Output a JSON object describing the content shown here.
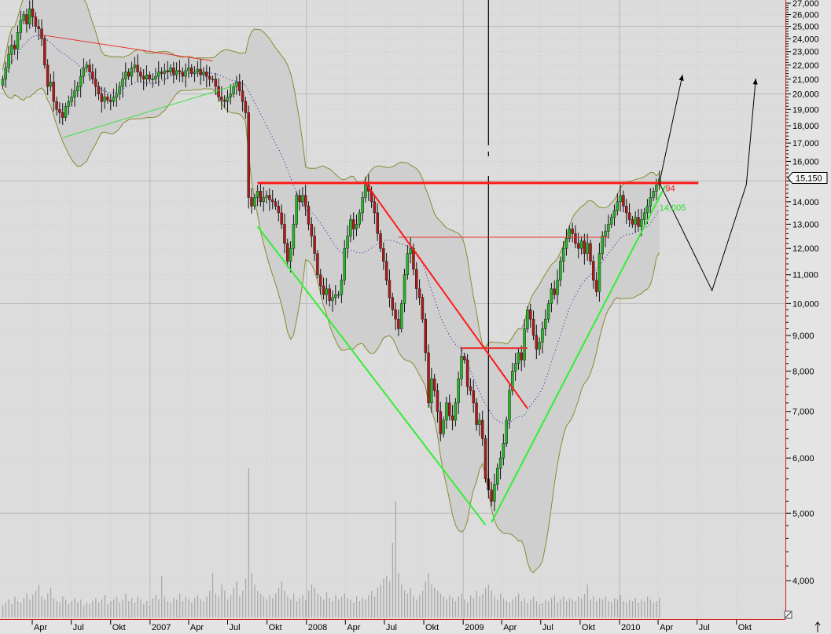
{
  "chart_data": {
    "type": "candlestick",
    "scale": "log",
    "ylim": [
      3700,
      27500
    ],
    "grid": true,
    "first_candle": "2006-01-22",
    "interval": "weekly",
    "close": [
      21000,
      21800,
      22800,
      23500,
      23200,
      24500,
      25500,
      26000,
      25200,
      26500,
      25800,
      25000,
      24800,
      24000,
      22000,
      20500,
      20800,
      19500,
      19000,
      18800,
      18500,
      19200,
      19500,
      19800,
      20200,
      20500,
      21200,
      21800,
      22000,
      21500,
      21000,
      20500,
      20000,
      19500,
      19800,
      19600,
      19500,
      19800,
      20000,
      20500,
      21000,
      21500,
      21200,
      21800,
      22000,
      21500,
      21200,
      21000,
      21300,
      21000,
      21000,
      21200,
      21500,
      21400,
      21600,
      21500,
      21800,
      21300,
      21600,
      21500,
      21200,
      21600,
      21800,
      21400,
      21500,
      21700,
      21300,
      21500,
      21200,
      21000,
      21000,
      20500,
      19800,
      19600,
      19500,
      19800,
      20000,
      20500,
      20800,
      20200,
      19500,
      18800,
      14200,
      13800,
      14200,
      14500,
      14000,
      14200,
      14300,
      14100,
      14000,
      13800,
      13500,
      13000,
      12200,
      11500,
      12000,
      13000,
      14300,
      14000,
      14300,
      13800,
      13000,
      12500,
      11800,
      11000,
      10600,
      10300,
      10500,
      10100,
      10200,
      10300,
      10300,
      10800,
      12000,
      12500,
      13200,
      12800,
      13000,
      13500,
      14200,
      14800,
      14500,
      14000,
      13500,
      12600,
      12000,
      11500,
      10800,
      10200,
      9800,
      9500,
      9200,
      10000,
      11000,
      11800,
      12000,
      11200,
      10500,
      10200,
      9500,
      8500,
      7200,
      7800,
      7500,
      7000,
      6500,
      6800,
      7200,
      6900,
      6800,
      7200,
      7800,
      8400,
      8300,
      7600,
      7500,
      7200,
      6700,
      6800,
      6400,
      5600,
      5400,
      5200,
      5500,
      5800,
      6000,
      6300,
      6800,
      7500,
      8000,
      8200,
      8500,
      8300,
      9200,
      9800,
      9500,
      9000,
      8600,
      8800,
      9200,
      9500,
      10000,
      10500,
      10300,
      10800,
      11500,
      12000,
      12400,
      12800,
      12600,
      12200,
      12000,
      12300,
      11800,
      12200,
      11500,
      10800,
      10400,
      11800,
      12500,
      12700,
      13000,
      13300,
      13600,
      14000,
      14300,
      13800,
      13500,
      13200,
      13000,
      13300,
      12900,
      13200,
      13500,
      13800,
      14200,
      14500,
      14800,
      15100
    ],
    "volume_relative": [
      8,
      10,
      12,
      9,
      14,
      11,
      10,
      13,
      16,
      12,
      15,
      18,
      22,
      14,
      12,
      16,
      20,
      13,
      11,
      10,
      14,
      12,
      9,
      11,
      13,
      10,
      12,
      8,
      10,
      9,
      11,
      13,
      10,
      12,
      15,
      9,
      11,
      12,
      14,
      10,
      12,
      16,
      11,
      13,
      10,
      14,
      12,
      9,
      11,
      8,
      13,
      15,
      12,
      28,
      14,
      11,
      10,
      13,
      12,
      16,
      11,
      14,
      12,
      10,
      13,
      15,
      12,
      11,
      14,
      18,
      30,
      16,
      14,
      22,
      18,
      12,
      15,
      20,
      24,
      14,
      18,
      26,
      100,
      30,
      22,
      18,
      16,
      14,
      12,
      15,
      13,
      16,
      20,
      24,
      18,
      14,
      12,
      16,
      11,
      13,
      15,
      12,
      18,
      22,
      20,
      16,
      14,
      12,
      17,
      13,
      11,
      15,
      12,
      14,
      16,
      13,
      12,
      10,
      14,
      11,
      13,
      12,
      15,
      18,
      14,
      20,
      22,
      26,
      28,
      24,
      50,
      78,
      30,
      22,
      18,
      16,
      20,
      14,
      12,
      15,
      18,
      24,
      30,
      22,
      20,
      18,
      16,
      14,
      12,
      15,
      13,
      11,
      14,
      16,
      12,
      10,
      15,
      13,
      18,
      14,
      16,
      20,
      22,
      18,
      14,
      12,
      16,
      13,
      11,
      10,
      12,
      14,
      16,
      11,
      13,
      10,
      12,
      14,
      11,
      9,
      10,
      12,
      11,
      13,
      15,
      10,
      12,
      14,
      11,
      13,
      12,
      11,
      14,
      13,
      16,
      22,
      12,
      14,
      11,
      13,
      12,
      14,
      11,
      10,
      13,
      12,
      15,
      11,
      10,
      12,
      11,
      13,
      10,
      12,
      11,
      14,
      12,
      10,
      11,
      13
    ],
    "indicators": [
      "Bollinger Bands",
      "moving average"
    ],
    "y_ticks": [
      27000,
      26000,
      25000,
      24000,
      23000,
      22000,
      21000,
      20000,
      19000,
      18000,
      17000,
      16000,
      14000,
      13000,
      12000,
      11000,
      10000,
      9000,
      8000,
      7000,
      6000,
      5000,
      4000
    ],
    "y_tick_labels": [
      "27,000",
      "26,000",
      "25,000",
      "24,000",
      "23,000",
      "22,000",
      "21,000",
      "20,000",
      "19,000",
      "18,000",
      "17,000",
      "16,000",
      "14,000",
      "13,000",
      "12,000",
      "11,000",
      "10,000",
      "9,000",
      "8,000",
      "7,000",
      "6,000",
      "5,000",
      "4,000"
    ],
    "x_ticks": [
      {
        "date": "2006-04-01",
        "label": "Apr"
      },
      {
        "date": "2006-07-01",
        "label": "Jul"
      },
      {
        "date": "2006-10-01",
        "label": "Okt"
      },
      {
        "date": "2007-01-01",
        "label": "2007"
      },
      {
        "date": "2007-04-01",
        "label": "Apr"
      },
      {
        "date": "2007-07-01",
        "label": "Jul"
      },
      {
        "date": "2007-10-01",
        "label": "Okt"
      },
      {
        "date": "2008-01-01",
        "label": "2008"
      },
      {
        "date": "2008-04-01",
        "label": "Apr"
      },
      {
        "date": "2008-07-01",
        "label": "Jul"
      },
      {
        "date": "2008-10-01",
        "label": "Okt"
      },
      {
        "date": "2009-01-01",
        "label": "2009"
      },
      {
        "date": "2009-04-01",
        "label": "Apr"
      },
      {
        "date": "2009-07-01",
        "label": "Jul"
      },
      {
        "date": "2009-10-01",
        "label": "Okt"
      },
      {
        "date": "2010-01-01",
        "label": "2010"
      },
      {
        "date": "2010-04-01",
        "label": "Apr"
      },
      {
        "date": "2010-07-01",
        "label": "Jul"
      },
      {
        "date": "2010-10-01",
        "label": "Okt"
      }
    ],
    "last_price_label": "15,150",
    "last_price": 15150,
    "annotations": {
      "lines": [
        {
          "color": "#e83030",
          "width": 1,
          "from": [
            "2006-04-24",
            24300
          ],
          "to": [
            "2007-05-27",
            22300
          ]
        },
        {
          "color": "#40e040",
          "width": 1,
          "from": [
            "2006-06-11",
            17300
          ],
          "to": [
            "2007-07-22",
            20600
          ]
        },
        {
          "color": "#ff1a1a",
          "width": 3,
          "from": [
            "2007-09-09",
            14900
          ],
          "to": [
            "2010-07-04",
            14900
          ]
        },
        {
          "color": "#ff1a1a",
          "width": 2,
          "from": [
            "2008-05-18",
            14900
          ],
          "to": [
            "2009-05-31",
            7070
          ]
        },
        {
          "color": "#e83030",
          "width": 1,
          "from": [
            "2008-08-03",
            12450
          ],
          "to": [
            "2009-12-06",
            12450
          ]
        },
        {
          "color": "#e83030",
          "width": 2,
          "from": [
            "2008-12-28",
            8630
          ],
          "to": [
            "2009-05-31",
            8630
          ]
        },
        {
          "color": "#33ee33",
          "width": 2,
          "from": [
            "2007-09-09",
            12900
          ],
          "to": [
            "2009-02-22",
            4810
          ]
        },
        {
          "color": "#33ee33",
          "width": 2,
          "from": [
            "2009-03-08",
            4850
          ],
          "to": [
            "2010-04-18",
            14770
          ]
        }
      ],
      "arrows": [
        {
          "points": [
            [
              "2010-04-04",
              14900
            ],
            [
              "2010-05-28",
              21310
            ]
          ]
        },
        {
          "points": [
            [
              "2010-04-04",
              14900
            ],
            [
              "2010-08-05",
              10440
            ],
            [
              "2010-10-24",
              14820
            ],
            [
              "2010-11-15",
              21040
            ]
          ]
        }
      ],
      "vertical_line_date": "2009-03-01",
      "labels": [
        {
          "text": "94",
          "color": "#e02020",
          "at": [
            "2010-04-18",
            14650
          ]
        },
        {
          "text": "14,005",
          "color": "#22dd22",
          "at": [
            "2010-04-04",
            13750
          ]
        }
      ]
    },
    "colors": {
      "up": "#22b822",
      "down": "#b01818",
      "band": "#8a8a30",
      "ma": "#1a1aa8",
      "axis_line": "#d02020",
      "background": "#dcdcdc",
      "band_fill": "#cfcfcf"
    }
  }
}
